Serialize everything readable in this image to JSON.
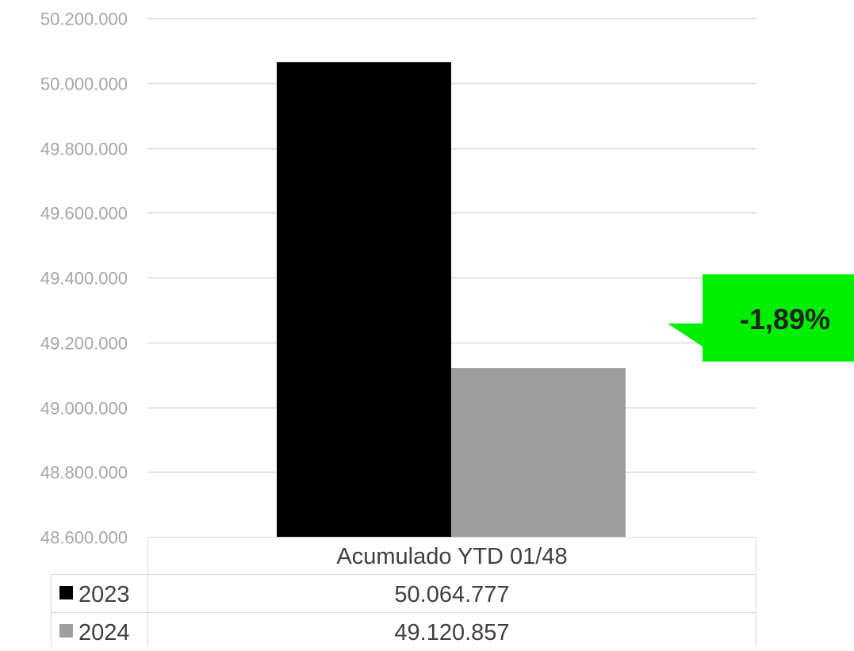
{
  "chart_data": {
    "type": "bar",
    "categories": [
      "Acumulado YTD 01/48"
    ],
    "series": [
      {
        "name": "2023",
        "values": [
          50064777
        ],
        "value_label": "50.064.777",
        "color": "#000000"
      },
      {
        "name": "2024",
        "values": [
          49120857
        ],
        "value_label": "49.120.857",
        "color": "#9e9e9e"
      }
    ],
    "ylim": [
      48600000,
      50200000
    ],
    "y_ticks": [
      50200000,
      50000000,
      49800000,
      49600000,
      49400000,
      49200000,
      49000000,
      48800000,
      48600000
    ],
    "y_tick_labels": [
      "50.200.000",
      "50.000.000",
      "49.800.000",
      "49.600.000",
      "49.400.000",
      "49.200.000",
      "49.000.000",
      "48.800.000",
      "48.600.000"
    ],
    "grid": true,
    "legend": "data-table-below",
    "annotation": {
      "text": "-1,89%",
      "color": "#00ee00",
      "points_to": "2024"
    }
  }
}
